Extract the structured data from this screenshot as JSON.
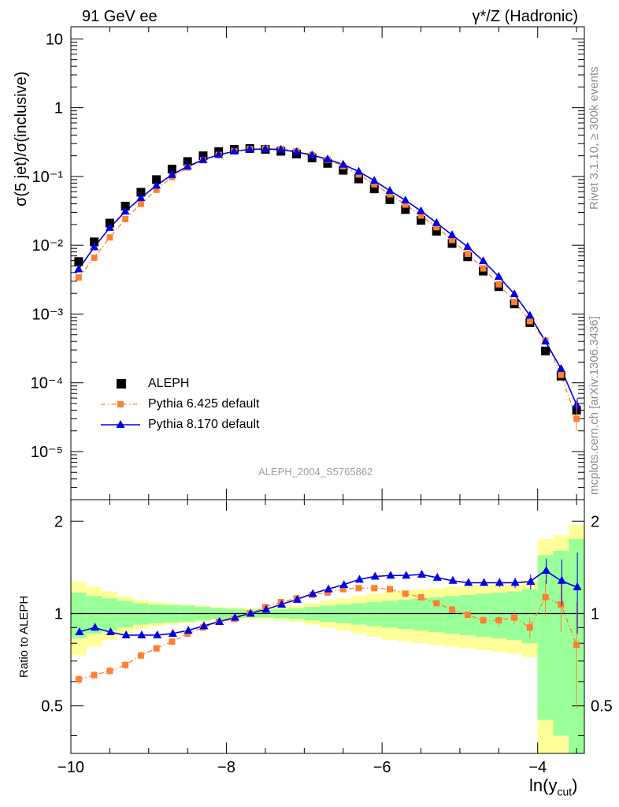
{
  "header": {
    "left": "91 GeV ee",
    "right": "γ*/Z (Hadronic)"
  },
  "side_labels": {
    "top": "Rivet 3.1.10, ≥ 300k events",
    "bottom": "mcplots.cern.ch [arXiv:1306.3436]"
  },
  "watermark": "ALEPH_2004_S5765862",
  "axis_labels": {
    "main_y": "σ(5 jet)/σ(inclusive)",
    "ratio_y": "Ratio to ALEPH",
    "x_main": "ln(y",
    "x_sub": "cut",
    "x_close": ")"
  },
  "legend": [
    {
      "label": "ALEPH"
    },
    {
      "label": "Pythia 6.425 default"
    },
    {
      "label": "Pythia 8.170 default"
    }
  ],
  "colors": {
    "data": "#000000",
    "pythia6": "#ff7f33",
    "pythia8": "#0000e6",
    "band_outer": "#ffff99",
    "band_inner": "#99ff99"
  },
  "chart_data": {
    "type": "line",
    "x": [
      -9.9,
      -9.7,
      -9.5,
      -9.3,
      -9.1,
      -8.9,
      -8.7,
      -8.5,
      -8.3,
      -8.1,
      -7.9,
      -7.7,
      -7.5,
      -7.3,
      -7.1,
      -6.9,
      -6.7,
      -6.5,
      -6.3,
      -6.1,
      -5.9,
      -5.7,
      -5.5,
      -5.3,
      -5.1,
      -4.9,
      -4.7,
      -4.5,
      -4.3,
      -4.1,
      -3.9,
      -3.7,
      -3.5
    ],
    "xlim": [
      -10.0,
      -3.4
    ],
    "ylim_main": [
      2e-06,
      15
    ],
    "ylim_ratio": [
      0.35,
      2.35
    ],
    "x_ticks": [
      "−10",
      "−8",
      "−6",
      "−4"
    ],
    "y_ticks_main": [
      "10",
      "1",
      "10⁻¹",
      "10⁻²",
      "10⁻³",
      "10⁻⁴",
      "10⁻⁵"
    ],
    "y_ticks_ratio": [
      "2",
      "1",
      "0.5"
    ],
    "series": [
      {
        "name": "ALEPH",
        "values": [
          0.0058,
          0.0112,
          0.021,
          0.037,
          0.059,
          0.09,
          0.128,
          0.165,
          0.2,
          0.23,
          0.248,
          0.255,
          0.248,
          0.232,
          0.212,
          0.186,
          0.155,
          0.123,
          0.092,
          0.066,
          0.046,
          0.033,
          0.023,
          0.016,
          0.0106,
          0.0068,
          0.0042,
          0.0025,
          0.0014,
          0.00075,
          0.00029,
          0.000125,
          4e-05
        ]
      },
      {
        "name": "Pythia 6.425 default",
        "values": [
          0.0034,
          0.0066,
          0.013,
          0.024,
          0.04,
          0.064,
          0.098,
          0.135,
          0.172,
          0.206,
          0.234,
          0.25,
          0.255,
          0.25,
          0.232,
          0.206,
          0.175,
          0.141,
          0.107,
          0.077,
          0.055,
          0.039,
          0.027,
          0.0183,
          0.0119,
          0.0075,
          0.0046,
          0.0027,
          0.0015,
          0.00079,
          0.00041,
          0.00013,
          3e-05
        ]
      },
      {
        "name": "Pythia 8.170 default",
        "values": [
          0.0045,
          0.0094,
          0.018,
          0.031,
          0.049,
          0.074,
          0.106,
          0.14,
          0.175,
          0.207,
          0.232,
          0.247,
          0.251,
          0.246,
          0.227,
          0.204,
          0.178,
          0.149,
          0.118,
          0.087,
          0.062,
          0.045,
          0.0315,
          0.0212,
          0.0141,
          0.0095,
          0.0059,
          0.0035,
          0.00195,
          0.00095,
          0.0004,
          0.00016,
          4.8e-05
        ]
      }
    ],
    "ratio_series": [
      {
        "name": "Pythia 6.425 default",
        "values": [
          0.61,
          0.63,
          0.65,
          0.68,
          0.73,
          0.77,
          0.81,
          0.86,
          0.9,
          0.94,
          0.96,
          1.0,
          1.05,
          1.09,
          1.12,
          1.15,
          1.17,
          1.2,
          1.21,
          1.21,
          1.2,
          1.16,
          1.13,
          1.08,
          1.03,
          0.99,
          0.95,
          0.95,
          0.97,
          0.9,
          1.13,
          1.07,
          0.79
        ]
      },
      {
        "name": "Pythia 8.170 default",
        "values": [
          0.87,
          0.9,
          0.87,
          0.85,
          0.85,
          0.85,
          0.86,
          0.88,
          0.91,
          0.94,
          0.97,
          1.0,
          1.03,
          1.07,
          1.11,
          1.16,
          1.2,
          1.24,
          1.29,
          1.32,
          1.33,
          1.33,
          1.34,
          1.31,
          1.28,
          1.26,
          1.26,
          1.26,
          1.26,
          1.27,
          1.38,
          1.28,
          1.22
        ]
      }
    ],
    "uncertainty_band": {
      "inner": [
        0.17,
        0.14,
        0.12,
        0.1,
        0.08,
        0.07,
        0.065,
        0.06,
        0.05,
        0.04,
        0.035,
        0.03,
        0.03,
        0.035,
        0.04,
        0.05,
        0.06,
        0.07,
        0.08,
        0.09,
        0.1,
        0.11,
        0.12,
        0.13,
        0.14,
        0.15,
        0.16,
        0.17,
        0.18,
        0.2,
        0.55,
        0.6,
        0.75
      ],
      "outer": [
        0.27,
        0.22,
        0.18,
        0.14,
        0.11,
        0.09,
        0.08,
        0.07,
        0.06,
        0.05,
        0.045,
        0.04,
        0.04,
        0.05,
        0.06,
        0.08,
        0.1,
        0.12,
        0.14,
        0.16,
        0.18,
        0.19,
        0.2,
        0.21,
        0.22,
        0.23,
        0.24,
        0.25,
        0.26,
        0.28,
        0.75,
        0.8,
        0.95
      ]
    },
    "legend_placement": "lower-left"
  }
}
